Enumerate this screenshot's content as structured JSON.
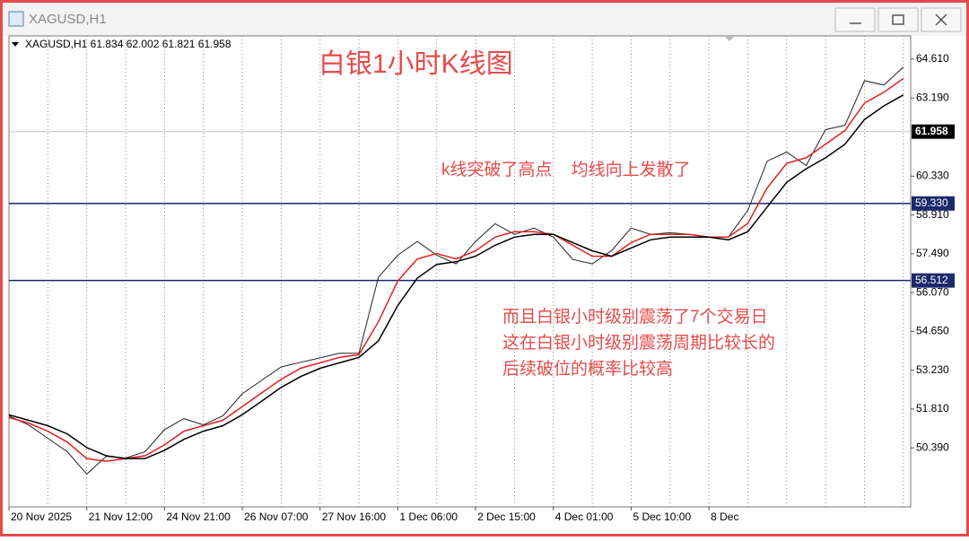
{
  "window_title": "XAGUSD,H1",
  "chart_data": {
    "type": "line",
    "info": "XAGUSD,H1  61.834 62.002 61.821 61.958",
    "title": "白银1小时K线图",
    "annotations": [
      "k线突破了高点    均线向上发散了",
      "而且白银小时级别震荡了7个交易日",
      "这在白银小时级别震荡周期比较长的",
      "后续破位的概率比较高"
    ],
    "categories": [
      "20 Nov 2025",
      null,
      null,
      null,
      "21 Nov 12:00",
      null,
      null,
      null,
      "24 Nov 21:00",
      null,
      null,
      null,
      "26 Nov 07:00",
      null,
      null,
      null,
      "27 Nov 16:00",
      null,
      null,
      null,
      "1 Dec 06:00",
      null,
      null,
      null,
      "2 Dec 15:00",
      null,
      null,
      null,
      "4 Dec 01:00",
      null,
      null,
      null,
      "5 Dec 10:00",
      null,
      null,
      null,
      "8 Dec",
      null,
      null,
      null,
      null,
      null,
      null,
      null,
      null,
      null,
      null
    ],
    "series": [
      {
        "color": "#222222",
        "values": [
          51.56,
          51.23,
          50.74,
          50.25,
          49.43,
          50.08,
          50.02,
          50.25,
          51.06,
          51.46,
          51.23,
          51.56,
          52.37,
          52.86,
          53.35,
          53.52,
          53.68,
          53.85,
          53.85,
          56.63,
          57.44,
          57.94,
          57.44,
          57.12,
          57.94,
          58.59,
          58.2,
          58.43,
          58.1,
          57.28,
          57.12,
          57.61,
          58.43,
          58.2,
          58.26,
          58.2,
          58.1,
          58.1,
          59.08,
          60.88,
          61.21,
          60.72,
          62.03,
          62.19,
          63.82,
          63.66,
          64.32
        ]
      },
      {
        "color": "#e02020",
        "values": [
          51.5,
          51.3,
          51.0,
          50.6,
          50.0,
          49.9,
          50.0,
          50.1,
          50.5,
          51.0,
          51.2,
          51.4,
          51.9,
          52.4,
          52.9,
          53.3,
          53.5,
          53.7,
          53.8,
          55.0,
          56.5,
          57.3,
          57.5,
          57.3,
          57.6,
          58.1,
          58.3,
          58.3,
          58.2,
          57.8,
          57.4,
          57.4,
          57.9,
          58.2,
          58.2,
          58.2,
          58.1,
          58.1,
          58.6,
          59.9,
          60.8,
          61.0,
          61.5,
          62.0,
          63.0,
          63.4,
          63.9
        ]
      },
      {
        "color": "#000000",
        "values": [
          51.6,
          51.4,
          51.2,
          50.9,
          50.4,
          50.1,
          50.0,
          50.0,
          50.3,
          50.7,
          51.0,
          51.2,
          51.6,
          52.1,
          52.6,
          53.0,
          53.3,
          53.5,
          53.7,
          54.3,
          55.6,
          56.6,
          57.1,
          57.2,
          57.4,
          57.8,
          58.1,
          58.2,
          58.2,
          57.9,
          57.6,
          57.4,
          57.7,
          58.0,
          58.1,
          58.1,
          58.1,
          58.0,
          58.3,
          59.2,
          60.1,
          60.6,
          61.0,
          61.5,
          62.4,
          62.9,
          63.3
        ]
      }
    ],
    "ylim": [
      48.23,
      65.46
    ],
    "yticks": [
      {
        "value": 64.61,
        "label": "64.610"
      },
      {
        "value": 63.19,
        "label": "63.190"
      },
      {
        "value": 60.33,
        "label": "60.330"
      },
      {
        "value": 58.91,
        "label": "58.910"
      },
      {
        "value": 57.49,
        "label": "57.490"
      },
      {
        "value": 56.07,
        "label": "56.070"
      },
      {
        "value": 54.65,
        "label": "54.650"
      },
      {
        "value": 53.23,
        "label": "53.230"
      },
      {
        "value": 51.81,
        "label": "51.810"
      },
      {
        "value": 50.39,
        "label": "50.390"
      }
    ],
    "levels": [
      {
        "value": 59.33,
        "label": "59.330"
      },
      {
        "value": 56.512,
        "label": "56.512"
      }
    ],
    "current_price": {
      "value": 61.958,
      "label": "61.958"
    },
    "grid": "x"
  }
}
